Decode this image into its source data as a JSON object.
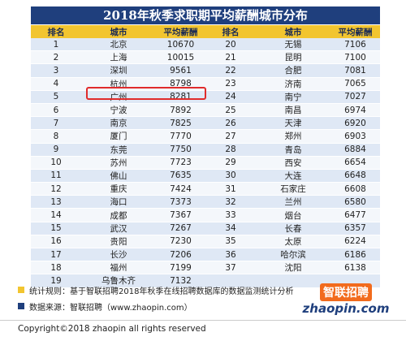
{
  "title": "2018年秋季求职期平均薪酬城市分布",
  "table": {
    "headers": [
      "排名",
      "城市",
      "平均薪酬",
      "排名",
      "城市",
      "平均薪酬"
    ],
    "rows": [
      [
        "1",
        "北京",
        "10670",
        "20",
        "无锡",
        "7106"
      ],
      [
        "2",
        "上海",
        "10015",
        "21",
        "昆明",
        "7100"
      ],
      [
        "3",
        "深圳",
        "9561",
        "22",
        "合肥",
        "7081"
      ],
      [
        "4",
        "杭州",
        "8798",
        "23",
        "济南",
        "7065"
      ],
      [
        "5",
        "广州",
        "8281",
        "24",
        "南宁",
        "7027"
      ],
      [
        "6",
        "宁波",
        "7892",
        "25",
        "南昌",
        "6974"
      ],
      [
        "7",
        "南京",
        "7825",
        "26",
        "天津",
        "6920"
      ],
      [
        "8",
        "厦门",
        "7770",
        "27",
        "郑州",
        "6903"
      ],
      [
        "9",
        "东莞",
        "7750",
        "28",
        "青岛",
        "6884"
      ],
      [
        "10",
        "苏州",
        "7723",
        "29",
        "西安",
        "6654"
      ],
      [
        "11",
        "佛山",
        "7635",
        "30",
        "大连",
        "6648"
      ],
      [
        "12",
        "重庆",
        "7424",
        "31",
        "石家庄",
        "6608"
      ],
      [
        "13",
        "海口",
        "7373",
        "32",
        "兰州",
        "6580"
      ],
      [
        "14",
        "成都",
        "7367",
        "33",
        "烟台",
        "6477"
      ],
      [
        "15",
        "武汉",
        "7267",
        "34",
        "长春",
        "6357"
      ],
      [
        "16",
        "贵阳",
        "7230",
        "35",
        "太原",
        "6224"
      ],
      [
        "17",
        "长沙",
        "7206",
        "36",
        "哈尔滨",
        "6186"
      ],
      [
        "18",
        "福州",
        "7199",
        "37",
        "沈阳",
        "6138"
      ],
      [
        "19",
        "乌鲁木齐",
        "7132",
        "",
        "",
        ""
      ]
    ]
  },
  "notes": {
    "rule": "统计规则：基于智联招聘2018年秋季在线招聘数据库的数据监测统计分析",
    "source": "数据来源：智联招聘（www.zhaopin.com）"
  },
  "logo": {
    "top": "智联招聘",
    "bottom": "zhaopin.com"
  },
  "copyright": "Copyright©2018 zhaopin all rights reserved",
  "colors": {
    "title_bg": "#1f3f7d",
    "header_bg": "#f2c530",
    "highlight": "#e02b2b"
  }
}
